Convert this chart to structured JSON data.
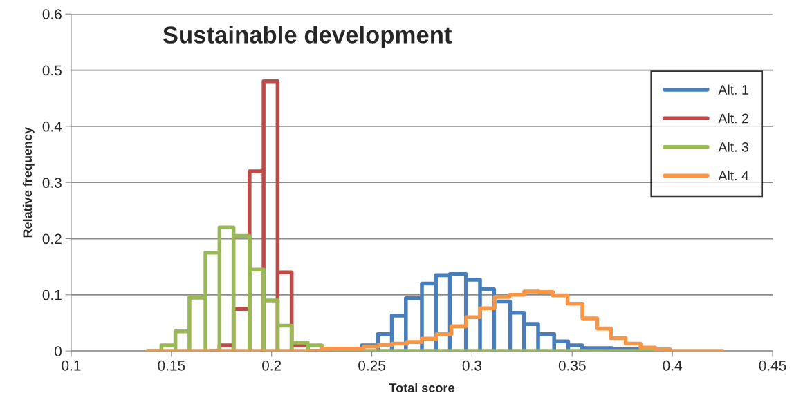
{
  "chart_data": {
    "type": "line",
    "title": "Sustainable development",
    "xlabel": "Total score",
    "ylabel": "Relative frequency",
    "xlim": [
      0.1,
      0.45
    ],
    "xticks": [
      0.1,
      0.15,
      0.2,
      0.25,
      0.3,
      0.35,
      0.4,
      0.45
    ],
    "ylim": [
      0,
      0.6
    ],
    "yticks": [
      0,
      0.1,
      0.2,
      0.3,
      0.4,
      0.5,
      0.6
    ],
    "grid": "y",
    "legend": "top right",
    "line_style": "solid",
    "marker": "none",
    "series": [
      {
        "name": "Alt. 1",
        "color": "#4a7ebb",
        "x": [
          0.23,
          0.245,
          0.245,
          0.253,
          0.253,
          0.253,
          0.253,
          0.26,
          0.26,
          0.26,
          0.26,
          0.267,
          0.267,
          0.267,
          0.267,
          0.275,
          0.275,
          0.275,
          0.275,
          0.282,
          0.282,
          0.282,
          0.282,
          0.289,
          0.289,
          0.289,
          0.289,
          0.297,
          0.297,
          0.297,
          0.297,
          0.304,
          0.304,
          0.304,
          0.304,
          0.311,
          0.311,
          0.311,
          0.311,
          0.319,
          0.319,
          0.319,
          0.319,
          0.326,
          0.326,
          0.326,
          0.326,
          0.333,
          0.333,
          0.333,
          0.333,
          0.341,
          0.341,
          0.341,
          0.341,
          0.348,
          0.348,
          0.348,
          0.348,
          0.355,
          0.355,
          0.355,
          0.355,
          0.37,
          0.37,
          0.37,
          0.37,
          0.385,
          0.385,
          0.39
        ],
        "values": [
          0,
          0,
          0.01,
          0.01,
          0,
          0,
          0.03,
          0.03,
          0,
          0,
          0.063,
          0.063,
          0,
          0,
          0.094,
          0.094,
          0,
          0,
          0.12,
          0.12,
          0,
          0,
          0.135,
          0.135,
          0,
          0,
          0.137,
          0.137,
          0,
          0,
          0.127,
          0.127,
          0,
          0,
          0.11,
          0.11,
          0,
          0,
          0.088,
          0.088,
          0,
          0,
          0.068,
          0.068,
          0,
          0,
          0.048,
          0.048,
          0,
          0,
          0.03,
          0.03,
          0,
          0,
          0.017,
          0.017,
          0,
          0,
          0.01,
          0.01,
          0,
          0,
          0.005,
          0.005,
          0,
          0,
          0.003,
          0.003,
          0,
          0
        ]
      },
      {
        "name": "Alt. 2",
        "color": "#be4b48",
        "x": [
          0.17,
          0.174,
          0.174,
          0.181,
          0.181,
          0.181,
          0.181,
          0.189,
          0.189,
          0.189,
          0.189,
          0.196,
          0.196,
          0.196,
          0.196,
          0.203,
          0.203,
          0.203,
          0.203,
          0.21,
          0.21,
          0.21,
          0.21,
          0.218,
          0.218,
          0.23
        ],
        "values": [
          0,
          0,
          0.01,
          0.01,
          0,
          0,
          0.075,
          0.075,
          0,
          0,
          0.32,
          0.32,
          0,
          0,
          0.48,
          0.48,
          0,
          0,
          0.14,
          0.14,
          0,
          0,
          0.01,
          0.01,
          0,
          0
        ]
      },
      {
        "name": "Alt. 3",
        "color": "#98b954",
        "x": [
          0.138,
          0.145,
          0.145,
          0.152,
          0.152,
          0.152,
          0.152,
          0.159,
          0.159,
          0.159,
          0.159,
          0.167,
          0.167,
          0.167,
          0.167,
          0.174,
          0.174,
          0.174,
          0.174,
          0.181,
          0.181,
          0.181,
          0.181,
          0.189,
          0.189,
          0.189,
          0.189,
          0.196,
          0.196,
          0.196,
          0.196,
          0.203,
          0.203,
          0.203,
          0.203,
          0.21,
          0.21,
          0.21,
          0.21,
          0.218,
          0.218,
          0.218,
          0.218,
          0.225,
          0.225,
          0.39
        ],
        "values": [
          0,
          0,
          0.01,
          0.01,
          0,
          0,
          0.035,
          0.035,
          0,
          0,
          0.095,
          0.095,
          0,
          0,
          0.175,
          0.175,
          0,
          0,
          0.22,
          0.22,
          0,
          0,
          0.205,
          0.205,
          0,
          0,
          0.145,
          0.145,
          0,
          0,
          0.09,
          0.09,
          0,
          0,
          0.045,
          0.045,
          0,
          0,
          0.015,
          0.015,
          0,
          0,
          0.01,
          0.01,
          0,
          0
        ]
      },
      {
        "name": "Alt. 4",
        "color": "#f79646",
        "type": "step",
        "x": [
          0.138,
          0.225,
          0.2459,
          0.2533,
          0.2601,
          0.2675,
          0.2749,
          0.2823,
          0.2897,
          0.2971,
          0.3039,
          0.3113,
          0.3187,
          0.3261,
          0.3335,
          0.3403,
          0.3477,
          0.3551,
          0.3625,
          0.3693,
          0.3767,
          0.3841,
          0.3915,
          0.3988,
          0.425
        ],
        "values": [
          0,
          0.004,
          0.008,
          0.011,
          0.013,
          0.016,
          0.022,
          0.03,
          0.044,
          0.06,
          0.076,
          0.096,
          0.1,
          0.106,
          0.105,
          0.099,
          0.084,
          0.058,
          0.04,
          0.023,
          0.013,
          0.006,
          0.003,
          0,
          0
        ]
      }
    ]
  }
}
